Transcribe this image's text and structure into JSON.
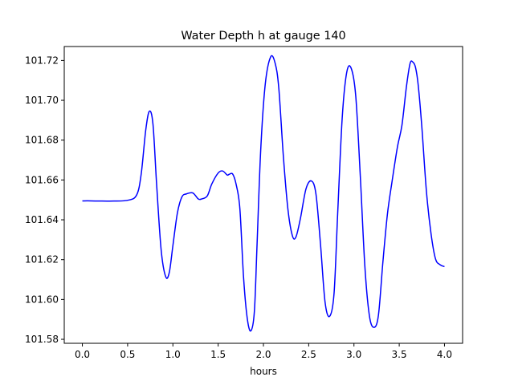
{
  "chart_data": {
    "type": "line",
    "title": "Water Depth h at gauge 140",
    "xlabel": "hours",
    "ylabel": "",
    "xlim": [
      -0.2,
      4.2
    ],
    "ylim": [
      101.578,
      101.727
    ],
    "xticks": [
      0.0,
      0.5,
      1.0,
      1.5,
      2.0,
      2.5,
      3.0,
      3.5,
      4.0
    ],
    "xtick_labels": [
      "0.0",
      "0.5",
      "1.0",
      "1.5",
      "2.0",
      "2.5",
      "3.0",
      "3.5",
      "4.0"
    ],
    "yticks": [
      101.58,
      101.6,
      101.62,
      101.64,
      101.66,
      101.68,
      101.7,
      101.72
    ],
    "ytick_labels": [
      "101.58",
      "101.60",
      "101.62",
      "101.64",
      "101.66",
      "101.68",
      "101.70",
      "101.72"
    ],
    "grid": false,
    "series": [
      {
        "color": "#0000ff",
        "x": [
          0.0,
          0.1,
          0.3,
          0.5,
          0.6,
          0.65,
          0.7,
          0.74,
          0.78,
          0.82,
          0.87,
          0.92,
          0.96,
          1.0,
          1.05,
          1.1,
          1.15,
          1.22,
          1.28,
          1.32,
          1.38,
          1.43,
          1.5,
          1.55,
          1.6,
          1.62,
          1.66,
          1.7,
          1.74,
          1.78,
          1.82,
          1.86,
          1.9,
          1.93,
          1.97,
          2.02,
          2.08,
          2.13,
          2.17,
          2.22,
          2.27,
          2.32,
          2.36,
          2.41,
          2.47,
          2.53,
          2.58,
          2.63,
          2.68,
          2.73,
          2.78,
          2.82,
          2.87,
          2.92,
          2.97,
          3.02,
          3.07,
          3.12,
          3.17,
          3.22,
          3.27,
          3.32,
          3.37,
          3.42,
          3.48,
          3.53,
          3.58,
          3.62,
          3.65,
          3.68,
          3.71,
          3.75,
          3.8,
          3.85,
          3.9,
          3.95,
          4.0
        ],
        "y": [
          101.6495,
          101.6495,
          101.6494,
          101.6498,
          101.6525,
          101.663,
          101.685,
          101.6945,
          101.688,
          101.658,
          101.625,
          101.6115,
          101.6135,
          101.627,
          101.6435,
          101.6515,
          101.653,
          101.6535,
          101.6505,
          101.6505,
          101.652,
          101.658,
          101.6635,
          101.6645,
          101.6625,
          101.6628,
          101.663,
          101.6575,
          101.6455,
          101.6115,
          101.591,
          101.5842,
          101.594,
          101.628,
          101.675,
          101.708,
          101.7218,
          101.7185,
          101.706,
          101.672,
          101.6455,
          101.632,
          101.6315,
          101.641,
          101.6555,
          101.6595,
          101.653,
          101.628,
          101.599,
          101.5915,
          101.603,
          101.643,
          101.691,
          101.714,
          101.716,
          101.702,
          101.662,
          101.617,
          101.592,
          101.586,
          101.592,
          101.619,
          101.643,
          101.659,
          101.6765,
          101.6875,
          101.707,
          101.7185,
          101.7192,
          101.7165,
          101.7075,
          101.6865,
          101.6545,
          101.6335,
          101.6205,
          101.6175,
          101.6165
        ]
      }
    ]
  }
}
